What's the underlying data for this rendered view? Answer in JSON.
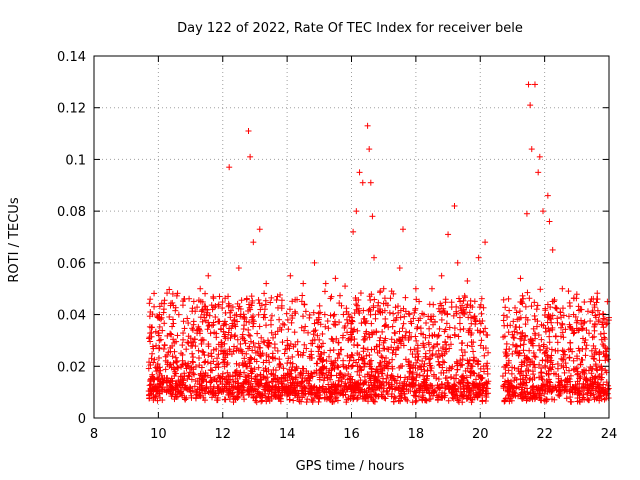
{
  "chart_data": {
    "type": "scatter",
    "title": "Day 122 of 2022, Rate Of TEC Index for receiver bele",
    "xlabel": "GPS time / hours",
    "ylabel": "ROTI / TECUs",
    "xlim": [
      8,
      24
    ],
    "ylim": [
      0,
      0.14
    ],
    "xticks": [
      8,
      10,
      12,
      14,
      16,
      18,
      20,
      22,
      24
    ],
    "yticks": [
      0,
      0.02,
      0.04,
      0.06,
      0.08,
      0.1,
      0.12,
      0.14
    ],
    "xtick_labels": [
      "8",
      "10",
      "12",
      "14",
      "16",
      "18",
      "20",
      "22",
      "24"
    ],
    "ytick_labels": [
      "0",
      "0.02",
      "0.04",
      "0.06",
      "0.08",
      "0.1",
      "0.12",
      "0.14"
    ],
    "grid": true,
    "marker": "+",
    "color": "#ff0000",
    "data_gap": [
      20.25,
      20.7
    ],
    "series": [
      {
        "name": "ROTI",
        "points": [
          [
            9.75,
            0.041
          ],
          [
            10.0,
            0.039
          ],
          [
            10.45,
            0.048
          ],
          [
            10.8,
            0.046
          ],
          [
            11.3,
            0.05
          ],
          [
            11.55,
            0.055
          ],
          [
            11.9,
            0.047
          ],
          [
            12.2,
            0.097
          ],
          [
            12.5,
            0.058
          ],
          [
            12.8,
            0.111
          ],
          [
            12.85,
            0.101
          ],
          [
            12.95,
            0.068
          ],
          [
            13.15,
            0.073
          ],
          [
            13.35,
            0.052
          ],
          [
            13.7,
            0.047
          ],
          [
            14.1,
            0.055
          ],
          [
            14.5,
            0.052
          ],
          [
            14.85,
            0.06
          ],
          [
            15.2,
            0.052
          ],
          [
            15.5,
            0.054
          ],
          [
            15.8,
            0.051
          ],
          [
            16.05,
            0.072
          ],
          [
            16.15,
            0.08
          ],
          [
            16.25,
            0.095
          ],
          [
            16.35,
            0.091
          ],
          [
            16.5,
            0.113
          ],
          [
            16.55,
            0.104
          ],
          [
            16.6,
            0.091
          ],
          [
            16.65,
            0.078
          ],
          [
            16.7,
            0.062
          ],
          [
            17.0,
            0.05
          ],
          [
            17.3,
            0.048
          ],
          [
            17.5,
            0.058
          ],
          [
            17.6,
            0.073
          ],
          [
            18.0,
            0.05
          ],
          [
            18.5,
            0.05
          ],
          [
            18.8,
            0.055
          ],
          [
            19.0,
            0.071
          ],
          [
            19.2,
            0.082
          ],
          [
            19.3,
            0.06
          ],
          [
            19.6,
            0.053
          ],
          [
            19.95,
            0.062
          ],
          [
            20.15,
            0.068
          ],
          [
            21.25,
            0.054
          ],
          [
            21.45,
            0.079
          ],
          [
            21.5,
            0.129
          ],
          [
            21.55,
            0.121
          ],
          [
            21.6,
            0.104
          ],
          [
            21.7,
            0.129
          ],
          [
            21.8,
            0.095
          ],
          [
            21.85,
            0.101
          ],
          [
            21.95,
            0.08
          ],
          [
            22.1,
            0.086
          ],
          [
            22.15,
            0.076
          ],
          [
            22.25,
            0.065
          ],
          [
            22.55,
            0.05
          ],
          [
            22.9,
            0.04
          ],
          [
            23.3,
            0.034
          ],
          [
            23.7,
            0.04
          ],
          [
            23.95,
            0.045
          ]
        ]
      }
    ]
  }
}
